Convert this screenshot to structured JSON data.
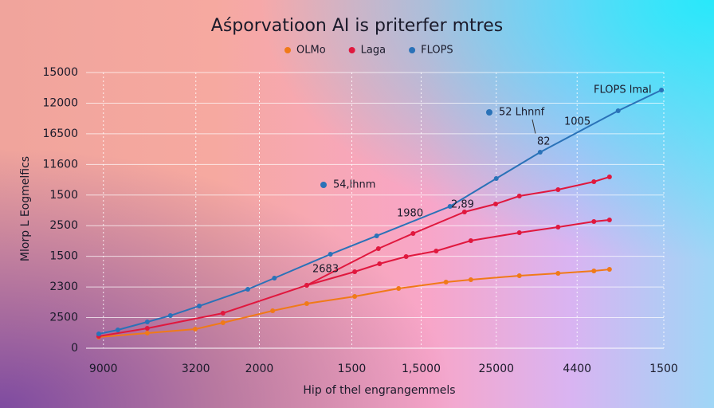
{
  "chart_data": {
    "type": "line",
    "title": "Aśporvatioon AI is priterfer mtres",
    "x_label": "Hip of thel engrangemmels",
    "y_label": "Mlorp L Eogmelfics",
    "xlim": [
      0,
      100
    ],
    "xticks": [
      {
        "value": 3,
        "label": "9000"
      },
      {
        "value": 19,
        "label": "3200"
      },
      {
        "value": 30,
        "label": "2000"
      },
      {
        "value": 46,
        "label": "1500"
      },
      {
        "value": 58,
        "label": "1,5000"
      },
      {
        "value": 71,
        "label": "25000"
      },
      {
        "value": 85,
        "label": "4400"
      },
      {
        "value": 100,
        "label": "1500"
      }
    ],
    "ylim": [
      0,
      9000
    ],
    "yticks": [
      0,
      {
        "value": 1000,
        "label": "2500"
      },
      {
        "value": 2000,
        "label": "2300"
      },
      {
        "value": 3000,
        "label": "1500"
      },
      {
        "value": 4000,
        "label": "2500"
      },
      {
        "value": 5000,
        "label": "1500"
      },
      {
        "value": 6000,
        "label": "11600"
      },
      {
        "value": 7000,
        "label": "16500"
      },
      {
        "value": 8000,
        "label": "12000"
      },
      {
        "value": 9000,
        "label": "15000"
      }
    ],
    "grid": true,
    "legend": "top",
    "series": [
      {
        "name": "OLMo",
        "color": "#f07a18",
        "x": [
          2.2,
          10.6,
          18.9,
          23.7,
          32.3,
          38.2,
          46.5,
          54.1,
          62.3,
          66.6,
          75.0,
          81.7,
          87.9,
          90.6
        ],
        "values": [
          364,
          494,
          624,
          832,
          1223,
          1457,
          1691,
          1951,
          2159,
          2237,
          2367,
          2445,
          2523,
          2574
        ]
      },
      {
        "name": "Laga",
        "color": "#e0183e",
        "x": [
          2.2,
          10.6,
          23.7,
          38.2,
          50.6,
          56.6,
          65.5,
          70.9,
          75.0,
          81.7,
          87.9,
          90.6
        ],
        "values": [
          390,
          650,
          1145,
          2055,
          3251,
          3746,
          4448,
          4708,
          4968,
          5176,
          5436,
          5592
        ]
      },
      {
        "name": "FLOPS",
        "color": "#2a72b8",
        "x": [
          2.2,
          5.5,
          10.6,
          14.6,
          19.6,
          28.0,
          32.6,
          42.3,
          50.3,
          63.0,
          71.0,
          78.6,
          92.1,
          99.6
        ],
        "values": [
          468,
          598,
          858,
          1066,
          1379,
          1925,
          2289,
          3069,
          3668,
          4630,
          5540,
          6399,
          7751,
          8428
        ]
      },
      {
        "color": "#e0183e",
        "x": [
          38.2,
          46.5,
          50.8,
          55.4,
          60.6,
          66.6,
          75.0,
          81.7,
          87.9,
          90.6
        ],
        "values": [
          2055,
          2497,
          2757,
          2991,
          3173,
          3512,
          3772,
          3954,
          4136,
          4188
        ]
      }
    ],
    "annotations": [
      "54,lhnm",
      "52 Lhnnf",
      "82",
      "1005",
      "FLOPS lmal",
      "1980",
      "2,89",
      "2683"
    ]
  }
}
